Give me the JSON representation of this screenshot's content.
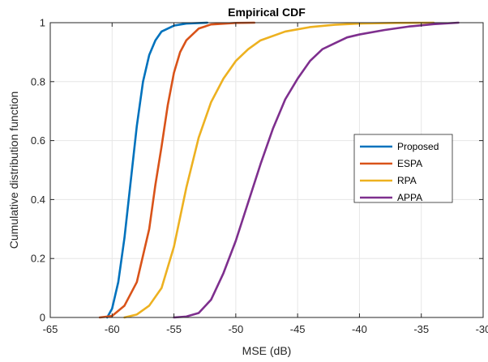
{
  "chart_data": {
    "type": "line",
    "title": "Empirical CDF",
    "xlabel": "MSE (dB)",
    "ylabel": "Cumulative distribution function",
    "xlim": [
      -65,
      -30
    ],
    "ylim": [
      0,
      1
    ],
    "xticks": [
      -65,
      -60,
      -55,
      -50,
      -45,
      -40,
      -35,
      -30
    ],
    "yticks": [
      0,
      0.2,
      0.4,
      0.6,
      0.8,
      1
    ],
    "xtick_labels": [
      "-65",
      "-60",
      "-55",
      "-50",
      "-45",
      "-40",
      "-35",
      "-30"
    ],
    "ytick_labels": [
      "0",
      "0.2",
      "0.4",
      "0.6",
      "0.8",
      "1"
    ],
    "grid": true,
    "legend_position": "right",
    "series": [
      {
        "name": "Proposed",
        "color": "#0072BD",
        "points": [
          [
            -60.4,
            0
          ],
          [
            -60.0,
            0.03
          ],
          [
            -59.5,
            0.12
          ],
          [
            -59.0,
            0.27
          ],
          [
            -58.5,
            0.46
          ],
          [
            -58.0,
            0.65
          ],
          [
            -57.5,
            0.8
          ],
          [
            -57.0,
            0.89
          ],
          [
            -56.5,
            0.94
          ],
          [
            -56.0,
            0.97
          ],
          [
            -55.0,
            0.99
          ],
          [
            -54.0,
            0.997
          ],
          [
            -52.3,
            1
          ]
        ]
      },
      {
        "name": "ESPA",
        "color": "#D95319",
        "points": [
          [
            -61.0,
            0
          ],
          [
            -60.0,
            0.005
          ],
          [
            -59.0,
            0.04
          ],
          [
            -58.0,
            0.12
          ],
          [
            -57.0,
            0.3
          ],
          [
            -56.5,
            0.45
          ],
          [
            -56.0,
            0.58
          ],
          [
            -55.5,
            0.72
          ],
          [
            -55.0,
            0.83
          ],
          [
            -54.5,
            0.9
          ],
          [
            -54.0,
            0.94
          ],
          [
            -53.0,
            0.98
          ],
          [
            -52.0,
            0.994
          ],
          [
            -50.0,
            0.999
          ],
          [
            -48.5,
            1
          ]
        ]
      },
      {
        "name": "RPA",
        "color": "#EDB120",
        "points": [
          [
            -59.0,
            0
          ],
          [
            -58.0,
            0.01
          ],
          [
            -57.0,
            0.04
          ],
          [
            -56.0,
            0.1
          ],
          [
            -55.0,
            0.24
          ],
          [
            -54.0,
            0.44
          ],
          [
            -53.0,
            0.61
          ],
          [
            -52.0,
            0.73
          ],
          [
            -51.0,
            0.81
          ],
          [
            -50.0,
            0.87
          ],
          [
            -49.0,
            0.91
          ],
          [
            -48.0,
            0.94
          ],
          [
            -46.0,
            0.97
          ],
          [
            -44.0,
            0.985
          ],
          [
            -42.0,
            0.993
          ],
          [
            -40.0,
            0.997
          ],
          [
            -37.0,
            0.999
          ],
          [
            -34.0,
            1
          ]
        ]
      },
      {
        "name": "APPA",
        "color": "#7E2F8E",
        "points": [
          [
            -55.0,
            0
          ],
          [
            -54.0,
            0.003
          ],
          [
            -53.0,
            0.015
          ],
          [
            -52.0,
            0.06
          ],
          [
            -51.0,
            0.15
          ],
          [
            -50.0,
            0.26
          ],
          [
            -49.0,
            0.39
          ],
          [
            -48.0,
            0.52
          ],
          [
            -47.0,
            0.64
          ],
          [
            -46.0,
            0.74
          ],
          [
            -45.0,
            0.81
          ],
          [
            -44.0,
            0.87
          ],
          [
            -43.0,
            0.91
          ],
          [
            -42.0,
            0.93
          ],
          [
            -41.0,
            0.95
          ],
          [
            -40.0,
            0.96
          ],
          [
            -38.0,
            0.975
          ],
          [
            -36.0,
            0.987
          ],
          [
            -34.0,
            0.995
          ],
          [
            -32.0,
            1
          ]
        ]
      }
    ]
  }
}
